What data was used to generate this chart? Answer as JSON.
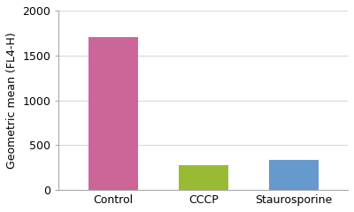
{
  "categories": [
    "Control",
    "CCCP",
    "Staurosporine"
  ],
  "values": [
    1700,
    275,
    340
  ],
  "bar_colors": [
    "#cc6699",
    "#99bb33",
    "#6699cc"
  ],
  "ylabel": "Geometric mean (FL4-H)",
  "ylim": [
    0,
    2000
  ],
  "yticks": [
    0,
    500,
    1000,
    1500,
    2000
  ],
  "bar_width": 0.55,
  "background_color": "#ffffff",
  "tick_fontsize": 9,
  "ylabel_fontsize": 9,
  "xlabel_fontsize": 9,
  "grid_color": "#d8d8d8",
  "grid_linewidth": 0.8
}
